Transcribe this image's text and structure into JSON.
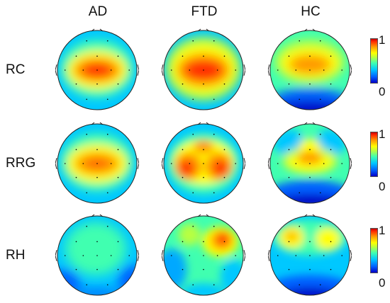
{
  "columns": [
    "AD",
    "FTD",
    "HC"
  ],
  "rows": [
    {
      "label": "RC"
    },
    {
      "label": "RRG"
    },
    {
      "label": "RH"
    }
  ],
  "colorbar": {
    "max_label": "1",
    "min_label": "0"
  },
  "colors": {
    "low": "#0000c8",
    "mid": "#40ffb0",
    "high": "#c80000"
  }
}
